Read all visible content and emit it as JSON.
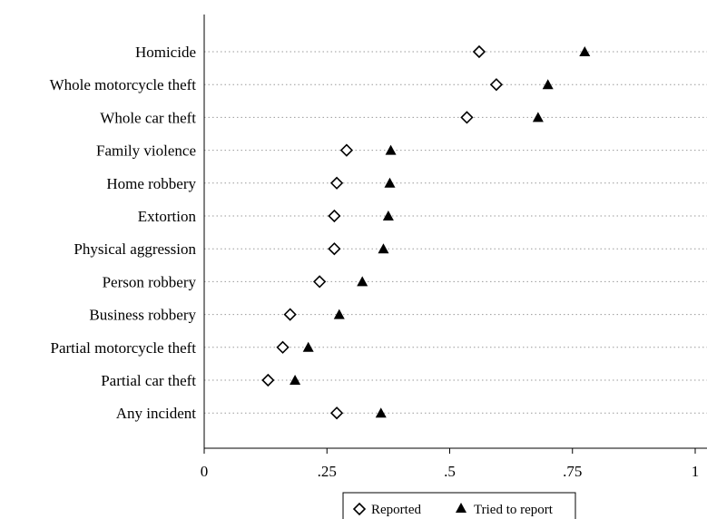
{
  "chart_data": {
    "type": "scatter",
    "orientation": "horizontal-dot",
    "categories": [
      "Homicide",
      "Whole motorcycle theft",
      "Whole car theft",
      "Family violence",
      "Home robbery",
      "Extortion",
      "Physical aggression",
      "Person robbery",
      "Business robbery",
      "Partial motorcycle theft",
      "Partial car theft",
      "Any incident"
    ],
    "series": [
      {
        "name": "Reported",
        "marker": "hollow-diamond",
        "color": "#000000",
        "values": [
          0.56,
          0.595,
          0.535,
          0.29,
          0.27,
          0.265,
          0.265,
          0.235,
          0.175,
          0.16,
          0.13,
          0.27
        ]
      },
      {
        "name": "Tried to report",
        "marker": "filled-triangle",
        "color": "#000000",
        "values": [
          0.775,
          0.7,
          0.68,
          0.38,
          0.378,
          0.375,
          0.365,
          0.322,
          0.275,
          0.212,
          0.185,
          0.36
        ]
      }
    ],
    "xlim": [
      0,
      1
    ],
    "xticks": [
      {
        "value": 0,
        "label": "0"
      },
      {
        "value": 0.25,
        "label": ".25"
      },
      {
        "value": 0.5,
        "label": ".5"
      },
      {
        "value": 0.75,
        "label": ".75"
      },
      {
        "value": 1,
        "label": "1"
      }
    ],
    "title": "",
    "xlabel": "",
    "ylabel": "",
    "grid": "dotted horizontal",
    "legend_position": "bottom-center"
  }
}
